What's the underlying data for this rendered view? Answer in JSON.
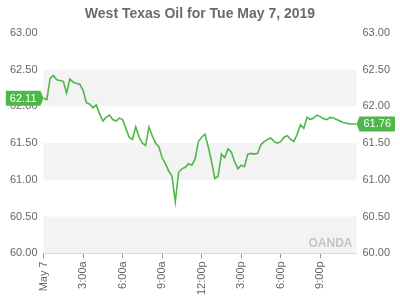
{
  "chart_data": {
    "type": "line",
    "title": "West Texas Oil for Tue May 7, 2019",
    "categories": [
      "May 7",
      null,
      null,
      null,
      null,
      null,
      null,
      null,
      null,
      null,
      null,
      null,
      "3:00a",
      null,
      null,
      null,
      null,
      null,
      null,
      null,
      null,
      null,
      null,
      null,
      "6:00a",
      null,
      null,
      null,
      null,
      null,
      null,
      null,
      null,
      null,
      null,
      null,
      "9:00a",
      null,
      null,
      null,
      null,
      null,
      null,
      null,
      null,
      null,
      null,
      null,
      "12:00p",
      null,
      null,
      null,
      null,
      null,
      null,
      null,
      null,
      null,
      null,
      null,
      "3:00p",
      null,
      null,
      null,
      null,
      null,
      null,
      null,
      null,
      null,
      null,
      null,
      "6:00p",
      null,
      null,
      null,
      null,
      null,
      null,
      null,
      null,
      null,
      null,
      null,
      "9:00p",
      null,
      null,
      null,
      null,
      null,
      null,
      null,
      null,
      null,
      null,
      null
    ],
    "values": [
      62.11,
      62.09,
      62.38,
      62.42,
      62.36,
      62.35,
      62.34,
      62.18,
      62.37,
      62.33,
      62.31,
      62.3,
      62.22,
      62.05,
      62.03,
      61.98,
      62.02,
      61.9,
      61.8,
      61.85,
      61.88,
      61.82,
      61.8,
      61.84,
      61.82,
      61.7,
      61.58,
      61.55,
      61.72,
      61.58,
      61.5,
      61.47,
      61.72,
      61.6,
      61.5,
      61.45,
      61.3,
      61.22,
      61.12,
      61.05,
      60.7,
      61.1,
      61.15,
      61.17,
      61.22,
      61.2,
      61.28,
      61.52,
      61.58,
      61.62,
      61.45,
      61.25,
      61.02,
      61.05,
      61.35,
      61.3,
      61.42,
      61.38,
      61.25,
      61.15,
      61.2,
      61.18,
      61.35,
      61.36,
      61.35,
      61.36,
      61.48,
      61.52,
      61.55,
      61.57,
      61.52,
      61.5,
      61.52,
      61.58,
      61.6,
      61.55,
      61.52,
      61.62,
      61.75,
      61.7,
      61.85,
      61.82,
      61.84,
      61.88,
      61.86,
      61.83,
      61.82,
      61.85,
      61.84,
      61.82,
      61.8,
      61.78,
      61.77,
      61.76,
      61.76,
      61.76
    ],
    "color": "#4db849",
    "ylim": [
      60,
      63
    ],
    "yticks": [
      {
        "value": 60,
        "label": "60.00"
      },
      {
        "value": 60.5,
        "label": "60.50"
      },
      {
        "value": 61,
        "label": "61.00"
      },
      {
        "value": 61.5,
        "label": "61.50"
      },
      {
        "value": 62,
        "label": "62.00"
      },
      {
        "value": 62.5,
        "label": "62.50"
      },
      {
        "value": 63,
        "label": "63.00"
      }
    ],
    "y2lim": [
      60,
      63
    ],
    "y2ticks": [
      {
        "value": 60,
        "label": "60.00"
      },
      {
        "value": 60.5,
        "label": "60.50"
      },
      {
        "value": 61,
        "label": "61.00"
      },
      {
        "value": 61.5,
        "label": "61.50"
      },
      {
        "value": 62,
        "label": "62.00"
      },
      {
        "value": 62.5,
        "label": "62.50"
      },
      {
        "value": 63,
        "label": "63.00"
      }
    ],
    "annotations": [
      {
        "value": 62.11,
        "label": "62.11",
        "axis": "y"
      },
      {
        "value": 61.76,
        "label": "61.76",
        "axis": "y2"
      }
    ],
    "watermark": "OANDA",
    "grid": true
  }
}
